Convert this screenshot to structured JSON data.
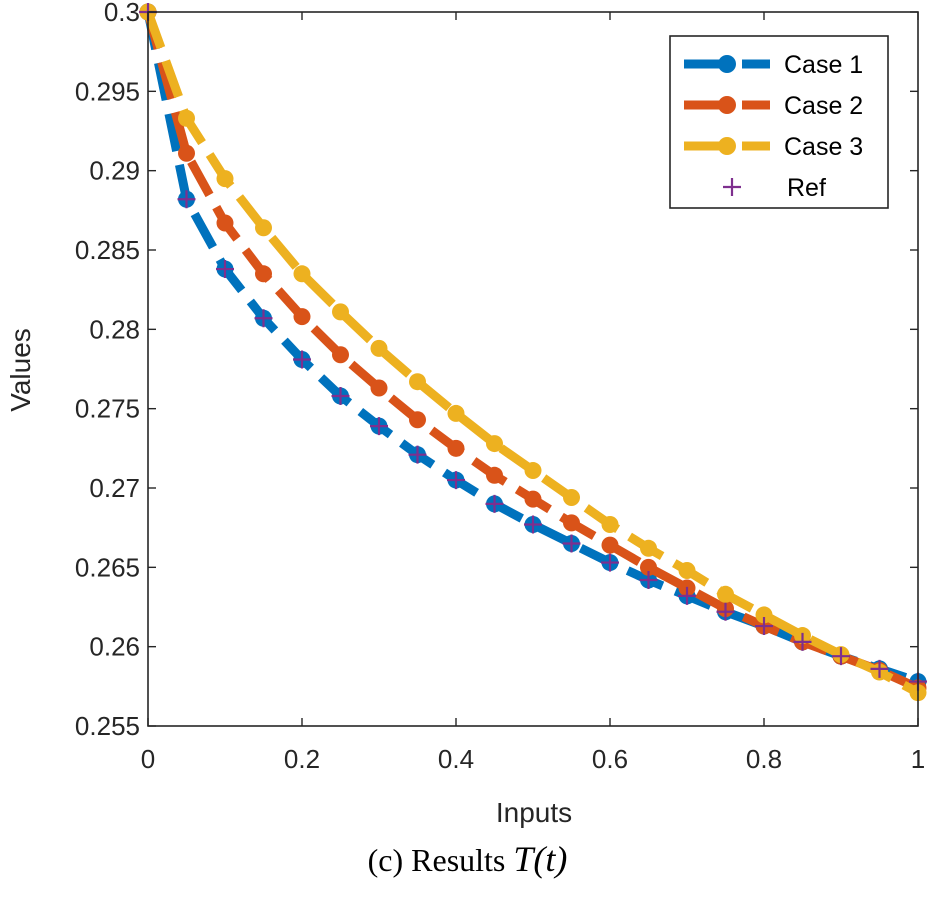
{
  "chart_data": {
    "type": "line",
    "xlabel": "Inputs",
    "ylabel": "Values",
    "xlim": [
      0,
      1
    ],
    "ylim": [
      0.255,
      0.3
    ],
    "xticks": [
      "0",
      "0.2",
      "0.4",
      "0.6",
      "0.8",
      "1"
    ],
    "yticks": [
      "0.255",
      "0.26",
      "0.265",
      "0.27",
      "0.275",
      "0.28",
      "0.285",
      "0.29",
      "0.295",
      "0.3"
    ],
    "legend_position": "top-right",
    "x": [
      0,
      0.05,
      0.1,
      0.15,
      0.2,
      0.25,
      0.3,
      0.35,
      0.4,
      0.45,
      0.5,
      0.55,
      0.6,
      0.65,
      0.7,
      0.75,
      0.8,
      0.85,
      0.9,
      0.95,
      1.0
    ],
    "series": [
      {
        "name": "Case 1",
        "color": "#0072BD",
        "style": "dashed-circle",
        "values": [
          0.3,
          0.2882,
          0.2838,
          0.2807,
          0.2781,
          0.2758,
          0.2739,
          0.2721,
          0.2705,
          0.269,
          0.2677,
          0.2665,
          0.2653,
          0.2642,
          0.2632,
          0.2622,
          0.2613,
          0.2603,
          0.2594,
          0.2586,
          0.2578
        ]
      },
      {
        "name": "Case 2",
        "color": "#D95319",
        "style": "dashed-circle",
        "values": [
          0.3,
          0.2911,
          0.2867,
          0.2835,
          0.2808,
          0.2784,
          0.2763,
          0.2743,
          0.2725,
          0.2708,
          0.2693,
          0.2678,
          0.2664,
          0.265,
          0.2637,
          0.2624,
          0.2613,
          0.2603,
          0.2594,
          0.2585,
          0.2574
        ]
      },
      {
        "name": "Case 3",
        "color": "#EDB120",
        "style": "dashed-circle",
        "values": [
          0.3,
          0.2933,
          0.2895,
          0.2864,
          0.2835,
          0.2811,
          0.2788,
          0.2767,
          0.2747,
          0.2728,
          0.2711,
          0.2694,
          0.2677,
          0.2662,
          0.2648,
          0.2633,
          0.262,
          0.2607,
          0.2595,
          0.2584,
          0.2571
        ]
      },
      {
        "name": "Ref",
        "color": "#7E2F8E",
        "style": "plus",
        "values": [
          0.3,
          0.2882,
          0.2838,
          0.2807,
          0.2781,
          0.2758,
          0.2739,
          0.2721,
          0.2705,
          0.269,
          0.2677,
          0.2665,
          0.2653,
          0.2642,
          0.2632,
          0.2622,
          0.2613,
          0.2603,
          0.2594,
          0.2586,
          0.2578
        ]
      }
    ]
  },
  "caption": {
    "prefix": "(c) Results ",
    "math": "T(t)"
  }
}
